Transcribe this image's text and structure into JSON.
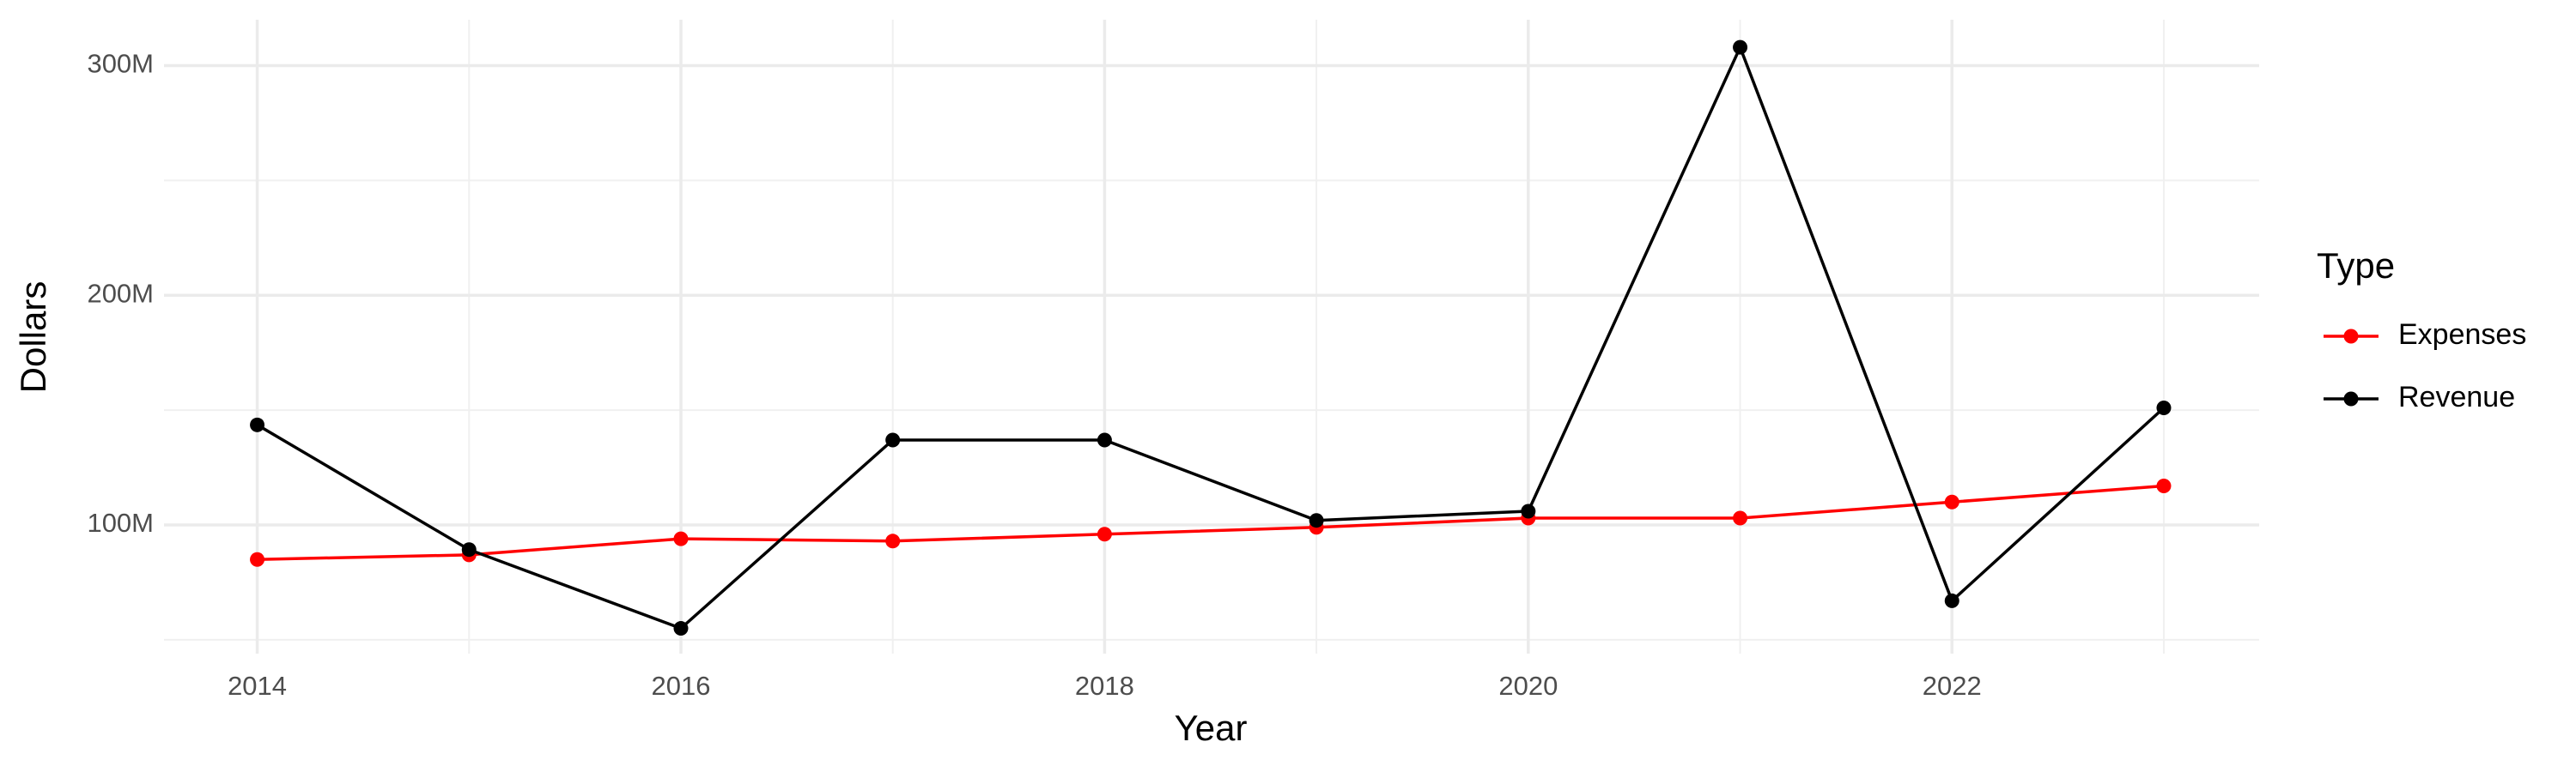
{
  "chart_data": {
    "type": "line",
    "x_label": "Year",
    "y_label": "Dollars",
    "legend_title": "Type",
    "x": [
      2014,
      2015,
      2016,
      2017,
      2018,
      2019,
      2020,
      2021,
      2022,
      2023
    ],
    "series": [
      {
        "name": "Expenses",
        "color": "#ff0000",
        "values": [
          85000000,
          87000000,
          94000000,
          93000000,
          96000000,
          99000000,
          103000000,
          103000000,
          110000000,
          117000000
        ]
      },
      {
        "name": "Revenue",
        "color": "#000000",
        "values": [
          143600000,
          89300000,
          55000000,
          137000000,
          137000000,
          102000000,
          106000000,
          308000000,
          67000000,
          151000000
        ]
      }
    ],
    "xlim": [
      2013.56,
      2023.45
    ],
    "xticks": [
      2014,
      2016,
      2018,
      2020,
      2022
    ],
    "ylim": [
      44000000,
      320000000
    ],
    "yticks": [
      {
        "value": 100000000,
        "label": "100M"
      },
      {
        "value": 200000000,
        "label": "200M"
      },
      {
        "value": 300000000,
        "label": "300M"
      }
    ],
    "grid": true,
    "legend_position": "right"
  }
}
